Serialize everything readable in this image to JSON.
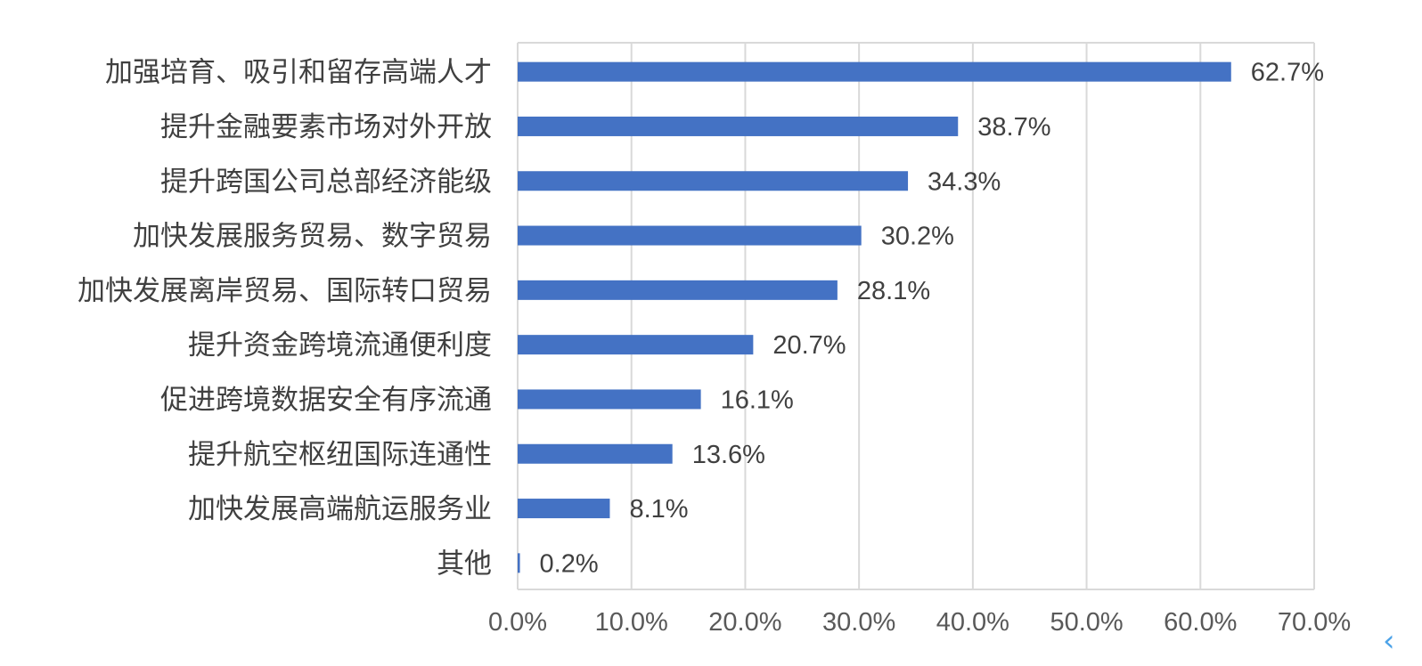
{
  "chart_data": {
    "type": "bar",
    "orientation": "horizontal",
    "categories": [
      "加强培育、吸引和留存高端人才",
      "提升金融要素市场对外开放",
      "提升跨国公司总部经济能级",
      "加快发展服务贸易、数字贸易",
      "加快发展离岸贸易、国际转口贸易",
      "提升资金跨境流通便利度",
      "促进跨境数据安全有序流通",
      "提升航空枢纽国际连通性",
      "加快发展高端航运服务业",
      "其他"
    ],
    "values": [
      62.7,
      38.7,
      34.3,
      30.2,
      28.1,
      20.7,
      16.1,
      13.6,
      8.1,
      0.2
    ],
    "value_labels": [
      "62.7%",
      "38.7%",
      "34.3%",
      "30.2%",
      "28.1%",
      "20.7%",
      "16.1%",
      "13.6%",
      "8.1%",
      "0.2%"
    ],
    "xlim": [
      0,
      70
    ],
    "x_ticks": [
      "0.0%",
      "10.0%",
      "20.0%",
      "30.0%",
      "40.0%",
      "50.0%",
      "60.0%",
      "70.0%"
    ],
    "grid": true,
    "legend": "none",
    "bar_color": "#4472c4",
    "grid_color": "#d9d9d9"
  },
  "decor": {
    "arrow_icon": "chevron-left-icon",
    "arrow_glyph": "‹",
    "arrow_color": "#4da3e8"
  }
}
